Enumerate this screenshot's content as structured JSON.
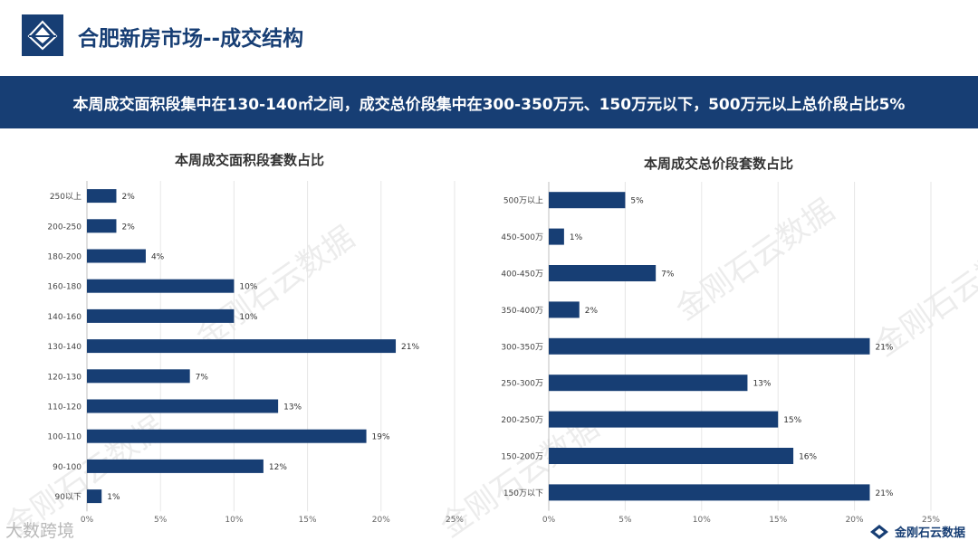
{
  "header": {
    "title": "合肥新房市场--成交结构"
  },
  "banner": {
    "text": "本周成交面积段集中在130-140㎡之间，成交总价段集中在300-350万元、150万元以下，500万元以上总价段占比5%"
  },
  "watermark": {
    "text": "金刚石云数据",
    "bottom_left": "大数跨境"
  },
  "footer_brand": {
    "text": "金刚石云数据"
  },
  "colors": {
    "primary": "#173e74",
    "bar": "#173e74",
    "grid": "#e6e6e6"
  },
  "chart_data": [
    {
      "type": "bar",
      "orientation": "horizontal",
      "title": "本周成交面积段套数占比",
      "categories": [
        "250以上",
        "200-250",
        "180-200",
        "160-180",
        "140-160",
        "130-140",
        "120-130",
        "110-120",
        "100-110",
        "90-100",
        "90以下"
      ],
      "values": [
        2,
        2,
        4,
        10,
        10,
        21,
        7,
        13,
        19,
        12,
        1
      ],
      "data_labels": [
        "2%",
        "2%",
        "4%",
        "10%",
        "10%",
        "21%",
        "7%",
        "13%",
        "19%",
        "12%",
        "1%"
      ],
      "xticks": [
        "0%",
        "5%",
        "10%",
        "15%",
        "20%",
        "25%"
      ],
      "xlim": [
        0,
        25
      ],
      "grid": true
    },
    {
      "type": "bar",
      "orientation": "horizontal",
      "title": "本周成交总价段套数占比",
      "categories": [
        "500万以上",
        "450-500万",
        "400-450万",
        "350-400万",
        "300-350万",
        "250-300万",
        "200-250万",
        "150-200万",
        "150万以下"
      ],
      "values": [
        5,
        1,
        7,
        2,
        21,
        13,
        15,
        16,
        21
      ],
      "data_labels": [
        "5%",
        "1%",
        "7%",
        "2%",
        "21%",
        "13%",
        "15%",
        "16%",
        "21%"
      ],
      "xticks": [
        "0%",
        "5%",
        "10%",
        "15%",
        "20%",
        "25%"
      ],
      "xlim": [
        0,
        25
      ],
      "grid": true
    }
  ]
}
